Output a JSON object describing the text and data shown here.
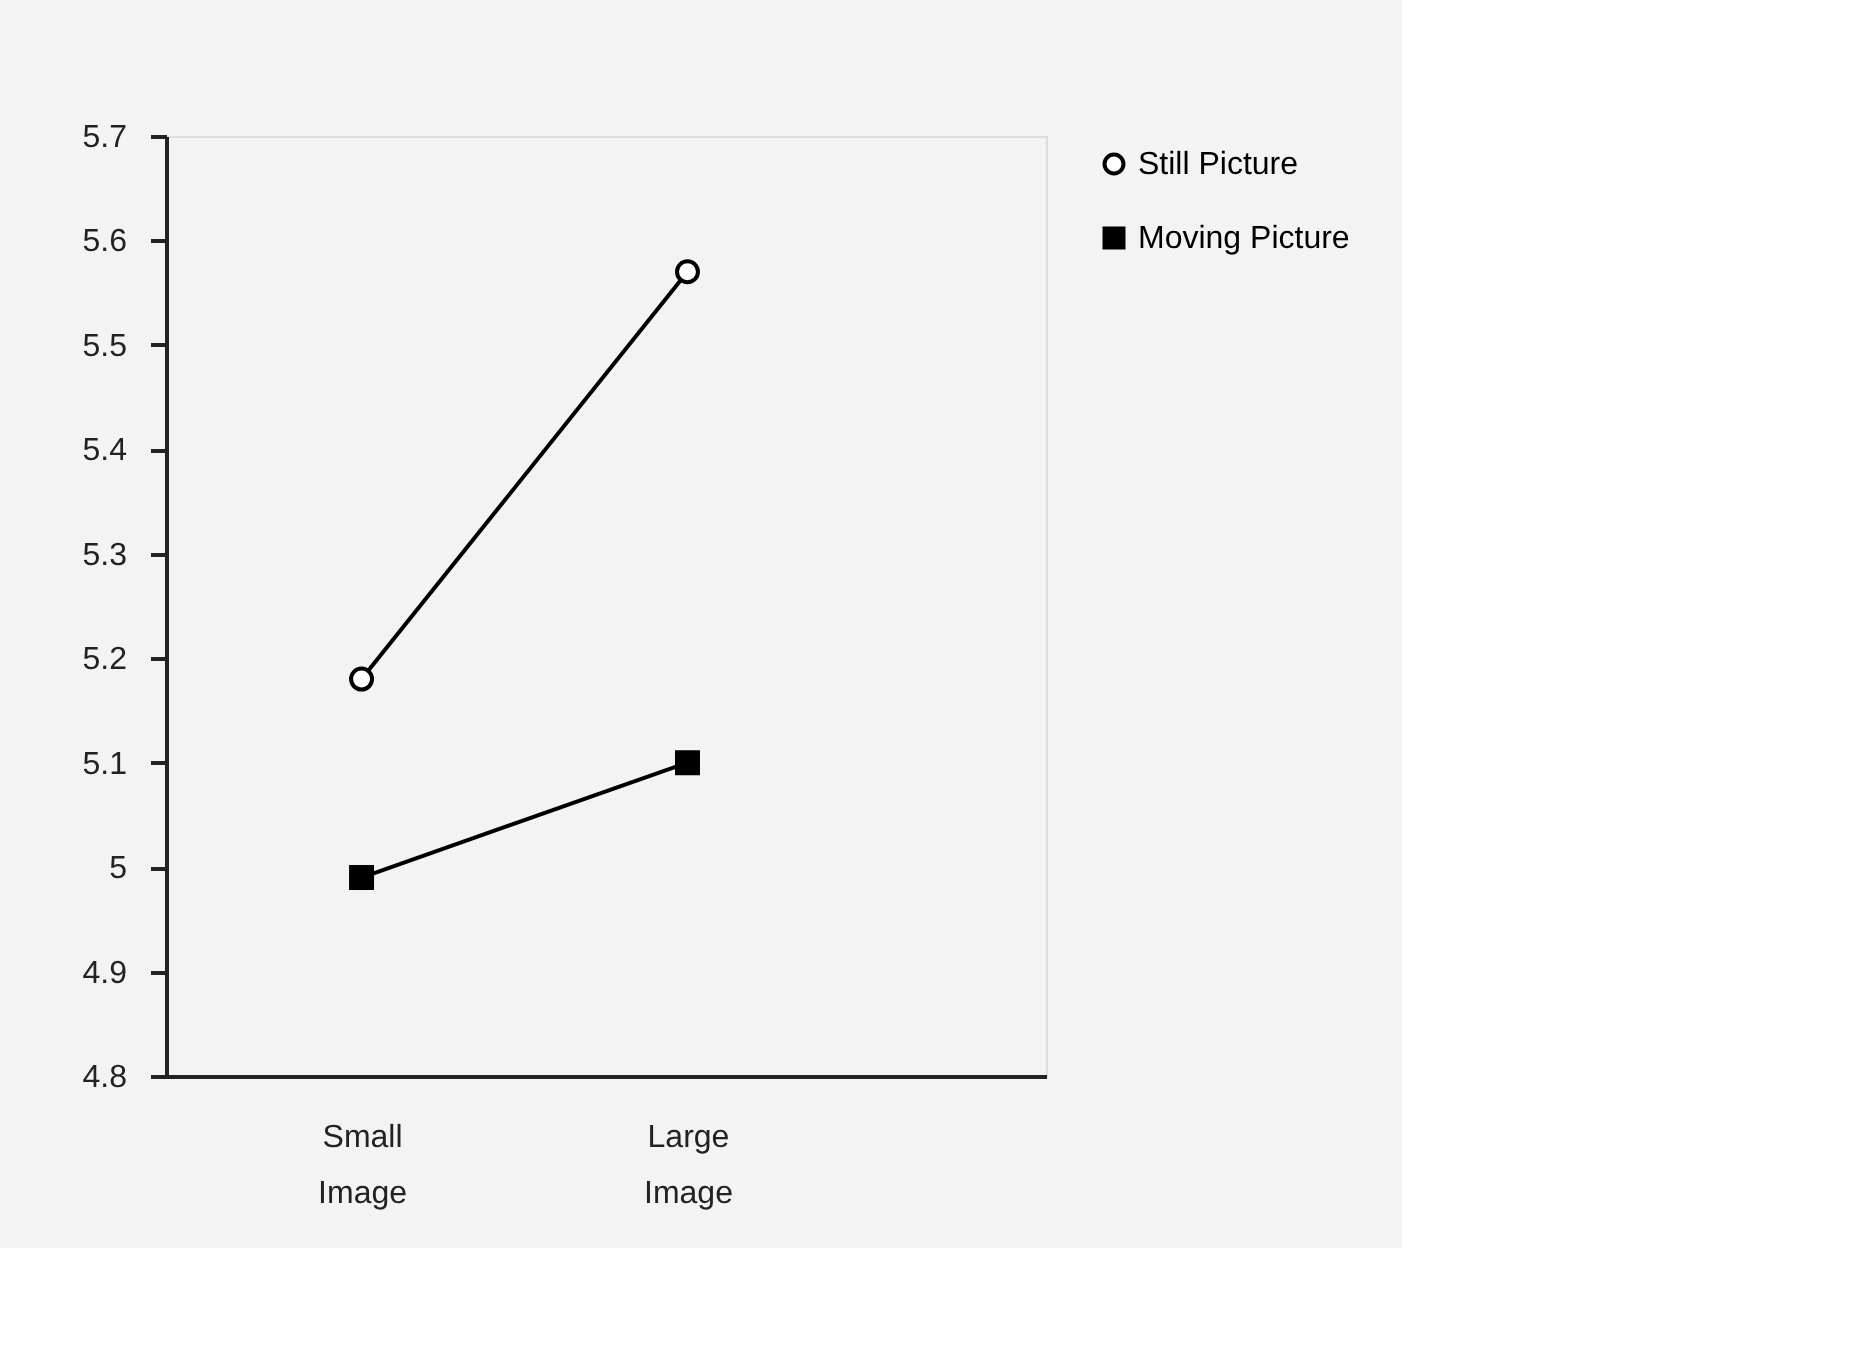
{
  "chart_data": {
    "type": "line",
    "categories": [
      "Small Image",
      "Large Image"
    ],
    "series": [
      {
        "name": "Still Picture",
        "color": "#000000",
        "marker": "circle",
        "values": [
          5.18,
          5.57
        ]
      },
      {
        "name": "Moving Picture",
        "color": "#000000",
        "marker": "square",
        "values": [
          4.99,
          5.1
        ]
      }
    ],
    "ylim": [
      4.8,
      5.7
    ],
    "yticks": [
      4.8,
      4.9,
      5,
      5.1,
      5.2,
      5.3,
      5.4,
      5.5,
      5.6,
      5.7
    ],
    "grid": false,
    "legend": "right",
    "line_style": "solid"
  }
}
